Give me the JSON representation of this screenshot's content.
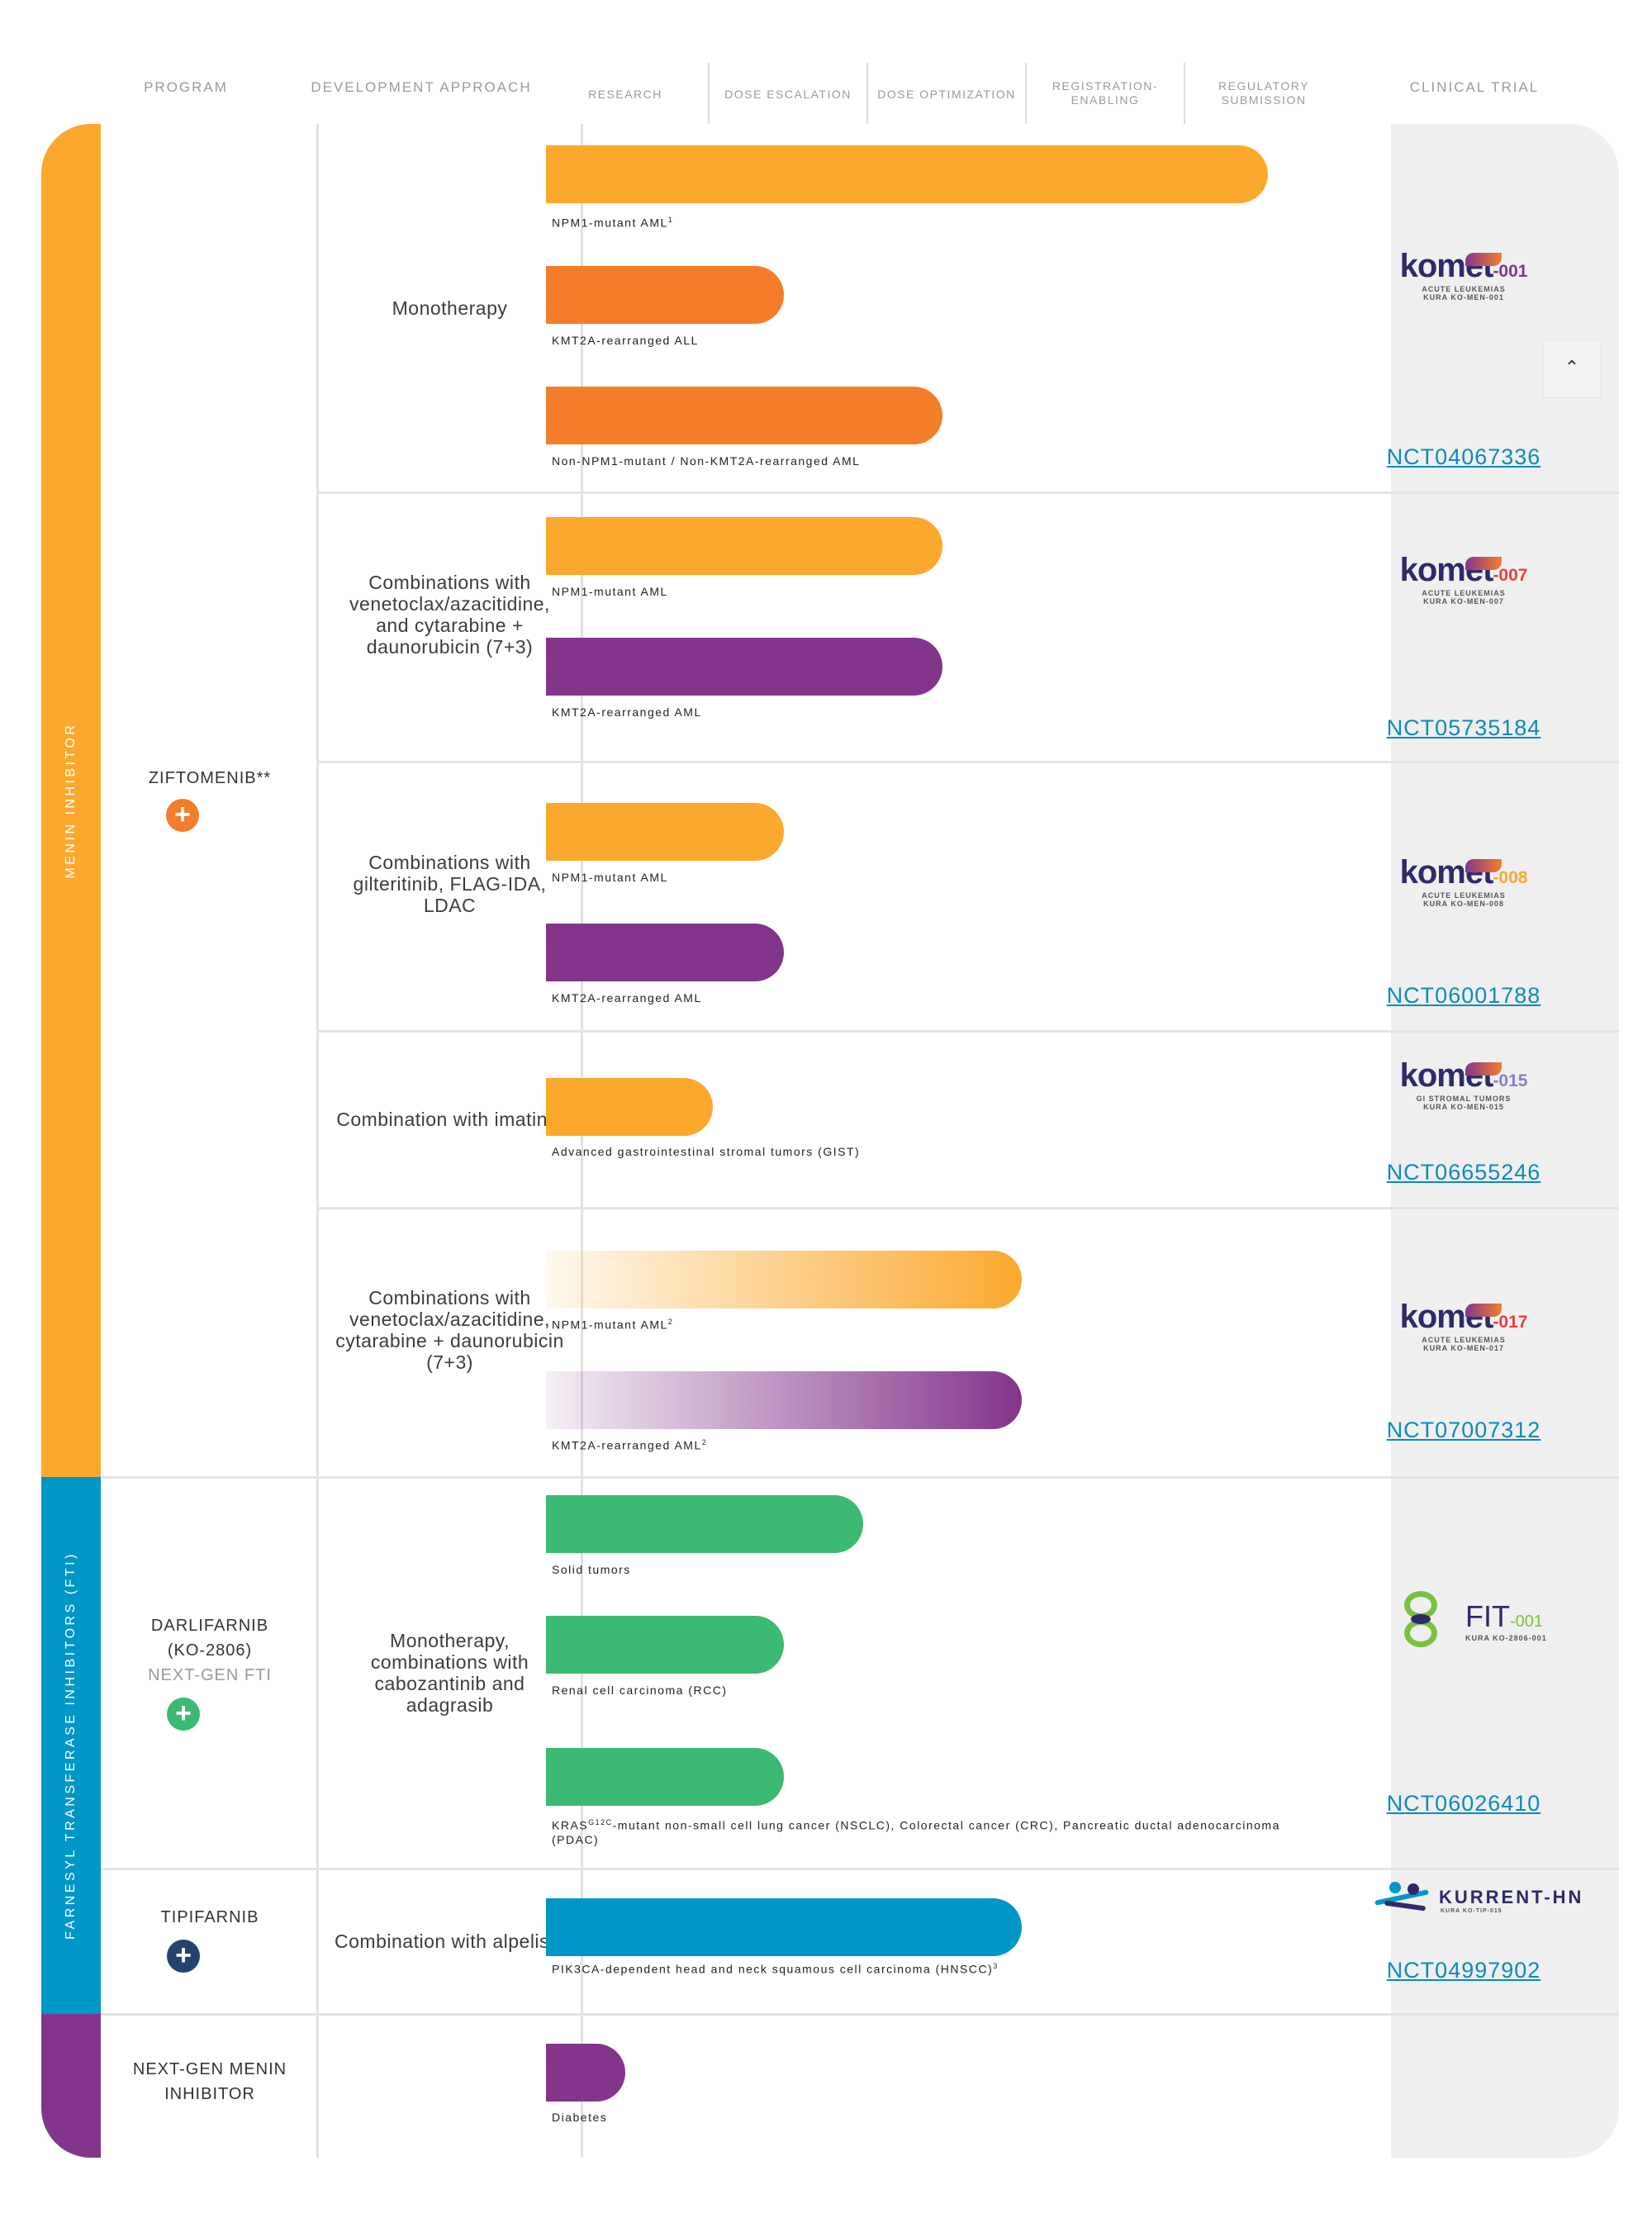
{
  "headers": {
    "program": "PROGRAM",
    "approach": "DEVELOPMENT APPROACH",
    "research": "RESEARCH",
    "dose_escalation": "DOSE ESCALATION",
    "dose_optimization": "DOSE OPTIMIZATION",
    "registration_1": "REGISTRATION-",
    "registration_2": "ENABLING",
    "regulatory_1": "REGULATORY",
    "regulatory_2": "SUBMISSION",
    "clinical_trial": "CLINICAL TRIAL"
  },
  "categories": {
    "menin": "MENIN INHIBITOR",
    "fti": "FARNESYL TRANSFERASE INHIBITORS (FTI)"
  },
  "colors": {
    "orange": "#fba92e",
    "dark_orange": "#f47d2c",
    "purple": "#83358c",
    "green": "#3bba74",
    "blue": "#0096c7",
    "navy": "#24436f",
    "cat_menin": "#fba92e",
    "cat_fti": "#0096c7",
    "cat_next": "#83358c"
  },
  "programs": {
    "ziftomenib": "ZIFTOMENIB**",
    "darlifarnib_1": "DARLIFARNIB",
    "darlifarnib_2": "(KO-2806)",
    "darlifarnib_sub": "NEXT-GEN FTI",
    "tipifarnib": "TIPIFARNIB",
    "nextgen_1": "NEXT-GEN MENIN",
    "nextgen_2": "INHIBITOR",
    "plus": "+"
  },
  "approaches": {
    "a1": "Monotherapy",
    "a2": "Combinations with venetoclax/azacitidine, and cytarabine + daunorubicin (7+3)",
    "a3": "Combinations with gilteritinib, FLAG-IDA, LDAC",
    "a4": "Combination with imatinib",
    "a5": "Combinations with venetoclax/azacitidine, cytarabine + daunorubicin (7+3)",
    "a6": "Monotherapy, combinations with cabozantinib and adagrasib",
    "a7": "Combination with alpelisib"
  },
  "labels": {
    "b1": "NPM1-mutant AML",
    "b1_sup": "1",
    "b2": "KMT2A-rearranged ALL",
    "b3": "Non-NPM1-mutant / Non-KMT2A-rearranged AML",
    "b4": "NPM1-mutant AML",
    "b5": "KMT2A-rearranged AML",
    "b6": "NPM1-mutant AML",
    "b7": "KMT2A-rearranged AML",
    "b8": "Advanced gastrointestinal stromal tumors (GIST)",
    "b9": "NPM1-mutant AML",
    "b9_sup": "2",
    "b10": "KMT2A-rearranged AML",
    "b10_sup": "2",
    "b11": "Solid tumors",
    "b12": "Renal cell carcinoma (RCC)",
    "b13_pre": "KRAS",
    "b13_sup": "G12C",
    "b13_post": "-mutant non-small cell lung cancer (NSCLC), Colorectal cancer (CRC), Pancreatic ductal adenocarcinoma (PDAC)",
    "b14": "PIK3CA-dependent head and neck squamous cell carcinoma (HNSCC)",
    "b14_sup": "3",
    "b15": "Diabetes"
  },
  "chart_data": {
    "type": "bar",
    "title": "",
    "xlabel": "",
    "ylabel": "",
    "stage_labels": [
      "RESEARCH",
      "DOSE ESCALATION",
      "DOSE OPTIMIZATION",
      "REGISTRATION-ENABLING",
      "REGULATORY SUBMISSION"
    ],
    "xlim": [
      0,
      5
    ],
    "bars": [
      {
        "id": "b1",
        "category": "NPM1-mutant AML",
        "value": 4.55,
        "color": "orange"
      },
      {
        "id": "b2",
        "category": "KMT2A-rearranged ALL",
        "value": 1.5,
        "color": "dark_orange"
      },
      {
        "id": "b3",
        "category": "Non-NPM1-mutant / Non-KMT2A-rearranged AML",
        "value": 2.5,
        "color": "dark_orange"
      },
      {
        "id": "b4",
        "category": "NPM1-mutant AML",
        "value": 2.5,
        "color": "orange"
      },
      {
        "id": "b5",
        "category": "KMT2A-rearranged AML",
        "value": 2.5,
        "color": "purple"
      },
      {
        "id": "b6",
        "category": "NPM1-mutant AML",
        "value": 1.5,
        "color": "orange"
      },
      {
        "id": "b7",
        "category": "KMT2A-rearranged AML",
        "value": 1.5,
        "color": "purple"
      },
      {
        "id": "b8",
        "category": "Advanced gastrointestinal stromal tumors (GIST)",
        "value": 1.05,
        "color": "orange"
      },
      {
        "id": "b9",
        "category": "NPM1-mutant AML",
        "value": 3.0,
        "color": "orange",
        "gradient": true
      },
      {
        "id": "b10",
        "category": "KMT2A-rearranged AML",
        "value": 3.0,
        "color": "purple",
        "gradient": true
      },
      {
        "id": "b11",
        "category": "Solid tumors",
        "value": 2.0,
        "color": "green"
      },
      {
        "id": "b12",
        "category": "Renal cell carcinoma (RCC)",
        "value": 1.5,
        "color": "green"
      },
      {
        "id": "b13",
        "category": "KRAS G12C-mutant NSCLC, CRC, PDAC",
        "value": 1.5,
        "color": "green"
      },
      {
        "id": "b14",
        "category": "PIK3CA-dependent HNSCC",
        "value": 3.0,
        "color": "blue"
      },
      {
        "id": "b15",
        "category": "Diabetes",
        "value": 0.5,
        "color": "purple"
      }
    ]
  },
  "trials": {
    "t1_logo": "komet",
    "t1_num": "-001",
    "t1_sub1": "ACUTE LEUKEMIAS",
    "t1_sub2": "KURA KO-MEN-001",
    "t1_nct": "NCT04067336",
    "t2_logo": "komet",
    "t2_num": "-007",
    "t2_sub1": "ACUTE LEUKEMIAS",
    "t2_sub2": "KURA KO-MEN-007",
    "t2_nct": "NCT05735184",
    "t3_logo": "komet",
    "t3_num": "-008",
    "t3_sub1": "ACUTE LEUKEMIAS",
    "t3_sub2": "KURA KO-MEN-008",
    "t3_nct": "NCT06001788",
    "t4_logo": "komet",
    "t4_num": "-015",
    "t4_sub1": "GI STROMAL TUMORS",
    "t4_sub2": "KURA KO-MEN-015",
    "t4_nct": "NCT06655246",
    "t5_logo": "komet",
    "t5_num": "-017",
    "t5_sub1": "ACUTE LEUKEMIAS",
    "t5_sub2": "KURA KO-MEN-017",
    "t5_nct": "NCT07007312",
    "t6_logo": "FIT",
    "t6_num": "-001",
    "t6_sub": "KURA KO-2806-001",
    "t6_nct": "NCT06026410",
    "t7_logo": "KURRENT-HN",
    "t7_sub": "KURA KO-TIP-015",
    "t7_nct": "NCT04997902"
  },
  "scroll": {
    "up_icon": "⌃"
  }
}
